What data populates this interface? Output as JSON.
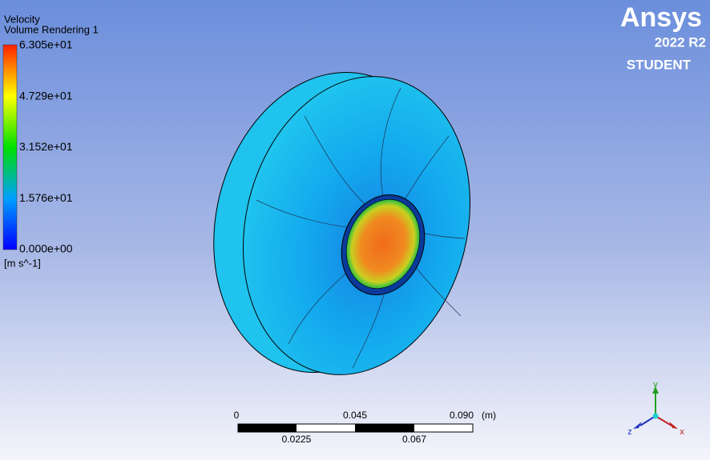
{
  "legend": {
    "title": "Velocity",
    "subtitle": "Volume Rendering 1",
    "labels": [
      "6.305e+01",
      "4.729e+01",
      "3.152e+01",
      "1.576e+01",
      "0.000e+00"
    ],
    "unit": "[m s^-1]"
  },
  "logo": {
    "name": "Ansys",
    "version": "2022 R2",
    "edition": "STUDENT"
  },
  "scale_bar": {
    "top_labels": [
      "0",
      "0.045",
      "0.090"
    ],
    "unit": "(m)",
    "bottom_labels": [
      "0.0225",
      "0.067"
    ]
  },
  "triad": {
    "y": "y",
    "z": "z",
    "x": "x"
  }
}
